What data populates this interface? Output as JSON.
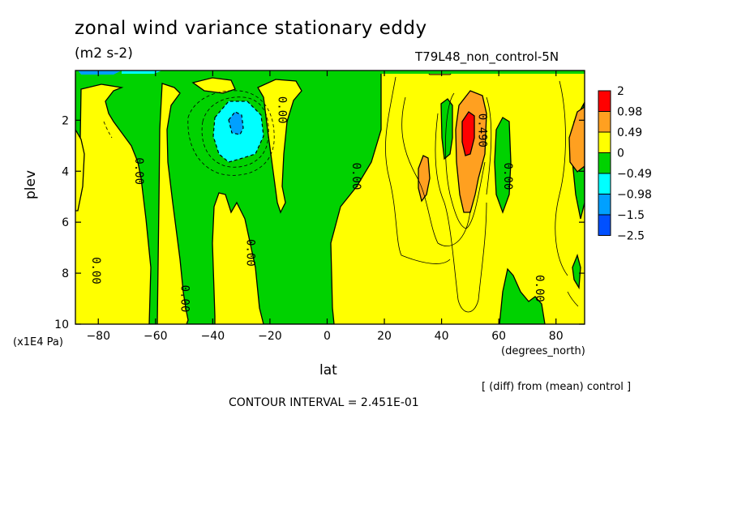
{
  "header": {
    "title": "zonal wind variance stationary eddy",
    "units": "(m2 s-2)",
    "run_name": "T79L48_non_control-5N"
  },
  "footer": {
    "difference_note": "[ (diff) from (mean) control ]",
    "contour_interval": "CONTOUR INTERVAL = 2.451E-01"
  },
  "chart_data": {
    "type": "heatmap",
    "title": "zonal wind variance stationary eddy",
    "subtitle": "(m2 s-2)",
    "xlabel": "lat",
    "x_unit": "(degrees_north)",
    "ylabel": "plev",
    "y_unit": "(x1E4 Pa)",
    "xlim": [
      -88,
      90
    ],
    "ylim": [
      10,
      0.05
    ],
    "y_inverted": true,
    "x_ticks": [
      -80,
      -60,
      -40,
      -20,
      0,
      20,
      40,
      60,
      80
    ],
    "y_ticks": [
      2,
      4,
      6,
      8,
      10
    ],
    "colorbar": {
      "levels": [
        "2",
        "0.98",
        "0.49",
        "0",
        "-0.49",
        "-0.98",
        "-1.5",
        "-2.5"
      ],
      "colors": [
        "#ff0000",
        "#ffa020",
        "#ffff00",
        "#00d200",
        "#00ffff",
        "#00a0ff",
        "#0050ff"
      ]
    },
    "contour_labels": [
      {
        "text": "0.00",
        "lat": -67,
        "plev": 4.0
      },
      {
        "text": "0.00",
        "lat": -82,
        "plev": 7.9
      },
      {
        "text": "0.00",
        "lat": -51,
        "plev": 9.0
      },
      {
        "text": "0.00",
        "lat": -28,
        "plev": 7.2
      },
      {
        "text": "0.00",
        "lat": -17,
        "plev": 1.6
      },
      {
        "text": "0.00",
        "lat": 9,
        "plev": 4.2
      },
      {
        "text": "0.490",
        "lat": 53,
        "plev": 2.4
      },
      {
        "text": "0.00",
        "lat": 62,
        "plev": 4.2
      },
      {
        "text": "0.00",
        "lat": 73,
        "plev": 8.6
      }
    ],
    "legend_position": "right",
    "grid": false
  }
}
